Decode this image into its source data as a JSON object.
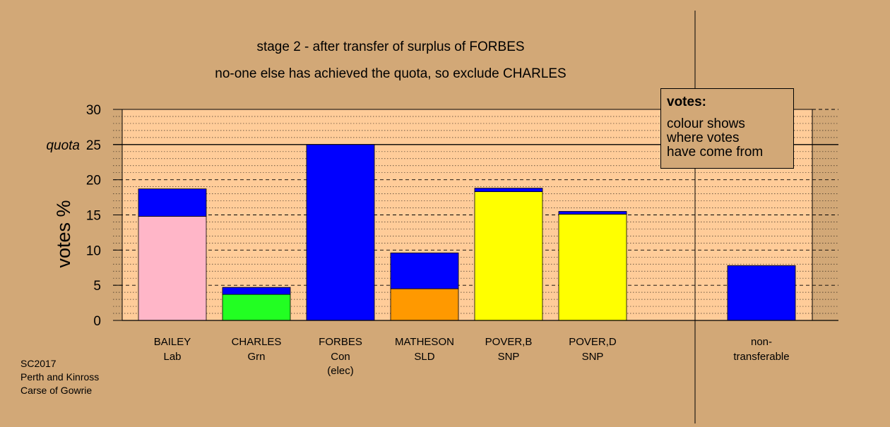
{
  "chart_data": {
    "type": "bar",
    "stacked": true,
    "title": "stage 2 - after transfer of surplus of FORBES",
    "subtitle": "no-one else has achieved the quota, so exclude CHARLES",
    "ylabel": "votes %",
    "xlabel": "",
    "ylim": [
      0,
      30
    ],
    "yticks": [
      0,
      5,
      10,
      15,
      20,
      25,
      30
    ],
    "quota": 25,
    "quota_label": "quota",
    "grid": true,
    "candidates": [
      {
        "name": "BAILEY",
        "party": "Lab",
        "note": "",
        "segments": [
          {
            "value": 14.8,
            "color": "#ffb6c8"
          },
          {
            "value": 3.9,
            "color": "#0000ff"
          }
        ]
      },
      {
        "name": "CHARLES",
        "party": "Grn",
        "note": "",
        "segments": [
          {
            "value": 3.7,
            "color": "#22ff22"
          },
          {
            "value": 1.0,
            "color": "#0000ff"
          }
        ]
      },
      {
        "name": "FORBES",
        "party": "Con",
        "note": "(elec)",
        "segments": [
          {
            "value": 25.0,
            "color": "#0000ff"
          }
        ]
      },
      {
        "name": "MATHESON",
        "party": "SLD",
        "note": "",
        "segments": [
          {
            "value": 4.5,
            "color": "#ff9900"
          },
          {
            "value": 5.1,
            "color": "#0000ff"
          }
        ]
      },
      {
        "name": "POVER,B",
        "party": "SNP",
        "note": "",
        "segments": [
          {
            "value": 18.3,
            "color": "#ffff00"
          },
          {
            "value": 0.5,
            "color": "#0000ff"
          }
        ]
      },
      {
        "name": "POVER,D",
        "party": "SNP",
        "note": "",
        "segments": [
          {
            "value": 15.1,
            "color": "#ffff00"
          },
          {
            "value": 0.4,
            "color": "#0000ff"
          }
        ]
      }
    ],
    "non_transferable": {
      "label_lines": [
        "non-",
        "transferable"
      ],
      "value": 7.8,
      "color": "#0000ff"
    }
  },
  "legend": {
    "title": "votes:",
    "lines": [
      "colour shows",
      "where votes",
      "have come from"
    ]
  },
  "footer": {
    "lines": [
      "SC2017",
      "Perth and Kinross",
      "Carse of Gowrie"
    ]
  },
  "colors": {
    "background": "#d2a877",
    "plot_background": "#ffcc99",
    "transfer": "#0000ff"
  }
}
